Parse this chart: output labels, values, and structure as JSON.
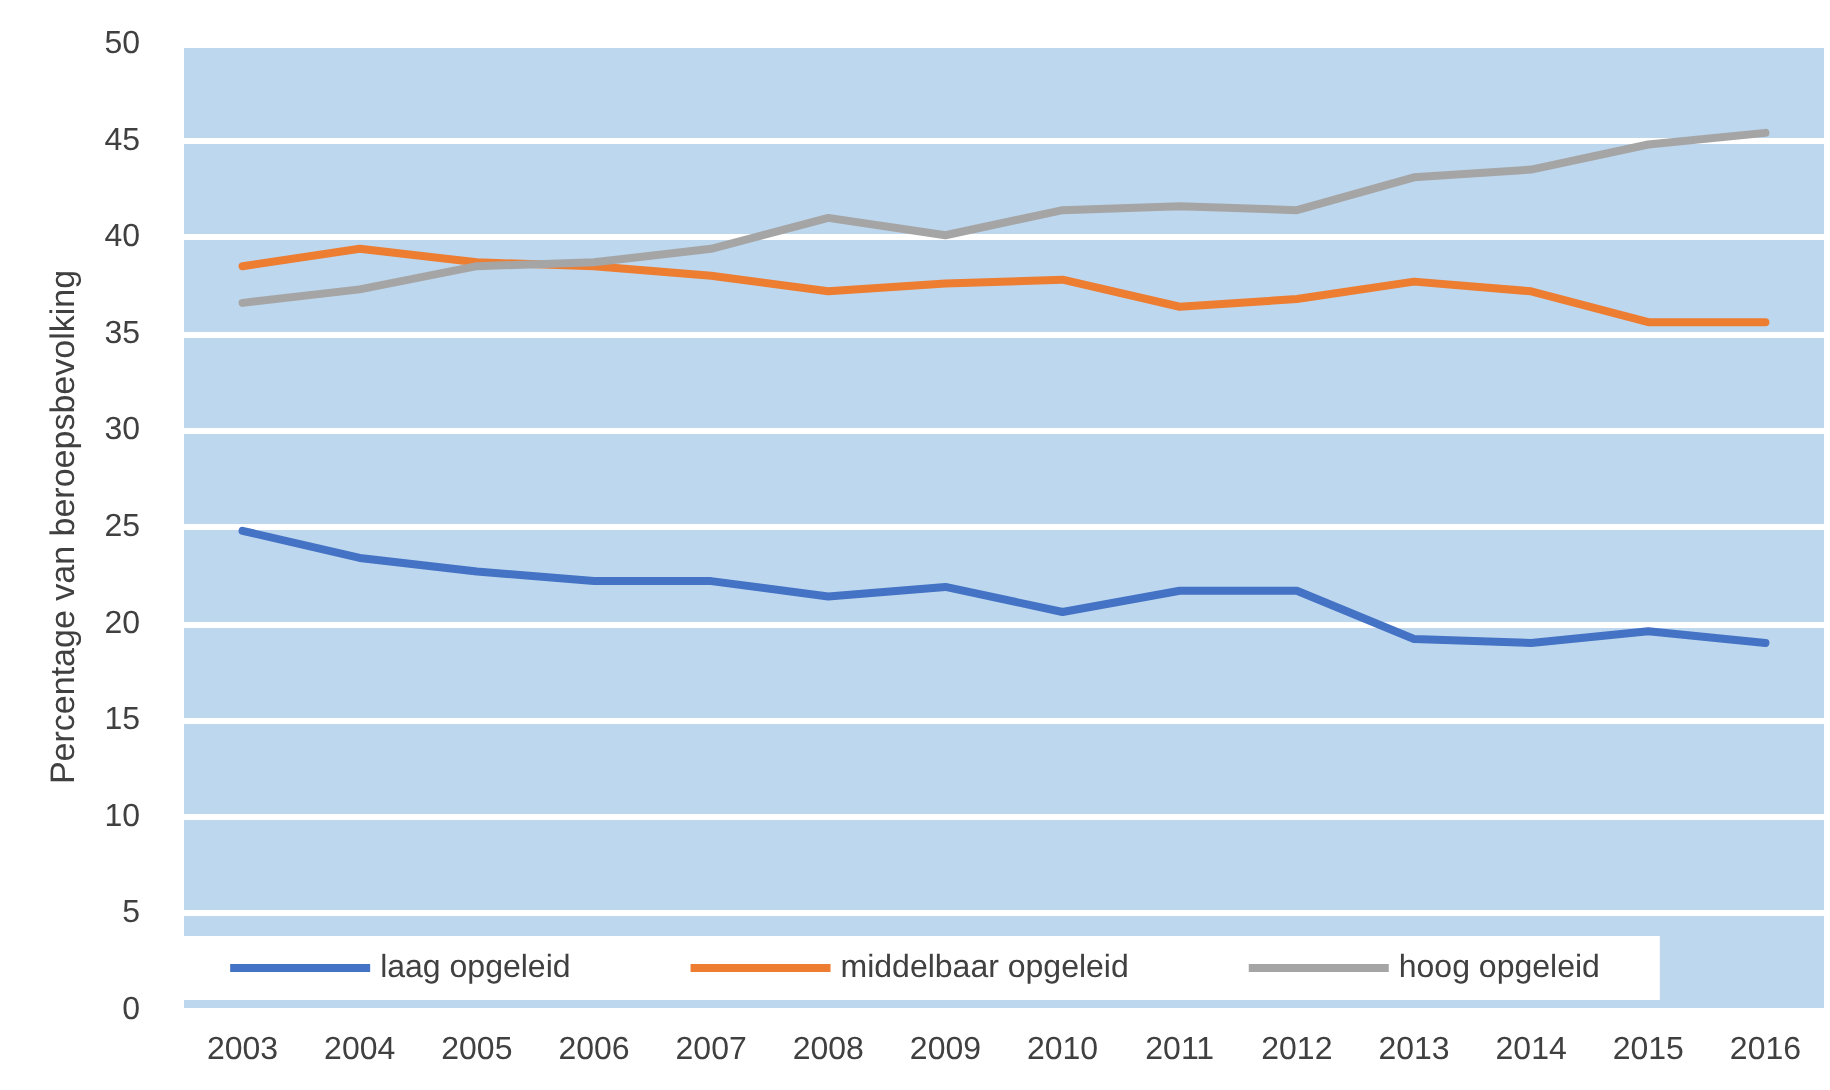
{
  "chart_data": {
    "type": "line",
    "ylabel": "Percentage van beroepsbevolking",
    "categories": [
      "2003",
      "2004",
      "2005",
      "2006",
      "2007",
      "2008",
      "2009",
      "2010",
      "2011",
      "2012",
      "2013",
      "2014",
      "2015",
      "2016"
    ],
    "series": [
      {
        "name": "laag opgeleid",
        "color": "#4472c4",
        "values": [
          24.8,
          23.4,
          22.7,
          22.2,
          22.2,
          21.4,
          21.9,
          20.6,
          21.7,
          21.7,
          19.2,
          19.0,
          19.6,
          19.0
        ]
      },
      {
        "name": "middelbaar opgeleid",
        "color": "#ed7d31",
        "values": [
          38.5,
          39.4,
          38.7,
          38.5,
          38.0,
          37.2,
          37.6,
          37.8,
          36.4,
          36.8,
          37.7,
          37.2,
          35.6,
          35.6
        ]
      },
      {
        "name": "hoog opgeleid",
        "color": "#a5a5a5",
        "values": [
          36.6,
          37.3,
          38.5,
          38.7,
          39.4,
          41.0,
          40.1,
          41.4,
          41.6,
          41.4,
          43.1,
          43.5,
          44.8,
          45.4
        ]
      }
    ],
    "ylim": [
      0,
      50
    ],
    "yticks": [
      0,
      5,
      10,
      15,
      20,
      25,
      30,
      35,
      40,
      45,
      50
    ],
    "grid": "y",
    "legend": "bottom",
    "marker": "none",
    "line_style": "solid"
  }
}
